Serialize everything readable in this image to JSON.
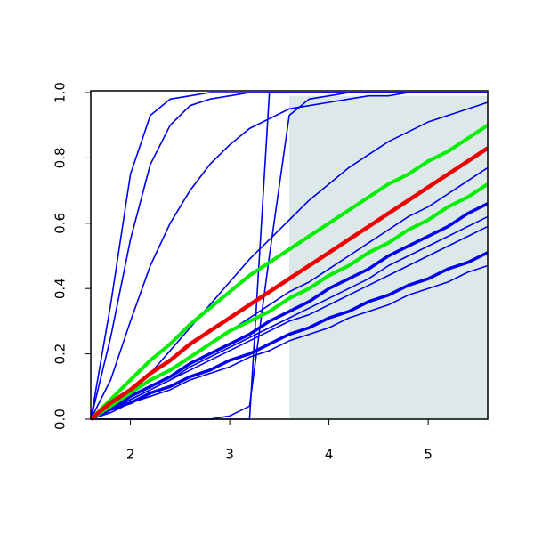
{
  "chart_data": {
    "type": "line",
    "x": [
      1.6,
      1.8,
      2.0,
      2.2,
      2.4,
      2.6,
      2.8,
      3.0,
      3.2,
      3.4,
      3.6,
      3.8,
      4.0,
      4.2,
      4.4,
      4.6,
      4.8,
      5.0,
      5.2,
      5.4,
      5.6
    ],
    "xlim": [
      1.6,
      5.6
    ],
    "xticks": [
      2,
      3,
      4,
      5
    ],
    "ylim": [
      0,
      1
    ],
    "yticks": [
      {
        "value": 0,
        "label": "0.0"
      },
      0.2,
      0.4,
      0.6,
      0.8,
      {
        "value": 1,
        "label": "1.0"
      }
    ],
    "shade": {
      "xlim": [
        3.6,
        5.6
      ],
      "ylim": [
        0,
        0.99
      ],
      "color": "#dde9e9"
    },
    "series": [
      {
        "color": "#0000ee",
        "width": 1.6,
        "values": [
          0,
          0.35,
          0.75,
          0.93,
          0.98,
          0.99,
          1,
          1,
          1,
          1,
          1,
          1,
          1,
          1,
          1,
          1,
          1,
          1,
          1,
          1,
          1
        ]
      },
      {
        "color": "#0000ee",
        "width": 1.6,
        "values": [
          0,
          0.25,
          0.55,
          0.78,
          0.9,
          0.96,
          0.98,
          0.99,
          1,
          1,
          1,
          1,
          1,
          1,
          1,
          1,
          1,
          1,
          1,
          1,
          1
        ]
      },
      {
        "color": "#0000ee",
        "width": 1.6,
        "values": [
          0,
          0.12,
          0.3,
          0.47,
          0.6,
          0.7,
          0.78,
          0.84,
          0.89,
          0.92,
          0.95,
          0.96,
          0.97,
          0.98,
          0.99,
          0.99,
          1,
          1,
          1,
          1,
          1
        ]
      },
      {
        "color": "#0000ee",
        "width": 1.6,
        "values": [
          0,
          0,
          0,
          0,
          0,
          0,
          0,
          0,
          0,
          1,
          1,
          1,
          1,
          1,
          1,
          1,
          1,
          1,
          1,
          1,
          1
        ]
      },
      {
        "color": "#0000ee",
        "width": 1.6,
        "values": [
          0,
          0,
          0,
          0,
          0,
          0,
          0,
          0.01,
          0.04,
          0.5,
          0.93,
          0.98,
          0.99,
          1,
          1,
          1,
          1,
          1,
          1,
          1,
          1
        ]
      },
      {
        "color": "#0000ee",
        "width": 1.6,
        "values": [
          0,
          0.03,
          0.08,
          0.14,
          0.21,
          0.28,
          0.35,
          0.42,
          0.49,
          0.55,
          0.61,
          0.67,
          0.72,
          0.77,
          0.81,
          0.85,
          0.88,
          0.91,
          0.93,
          0.95,
          0.97
        ]
      },
      {
        "color": "#0000ee",
        "width": 1.6,
        "values": [
          0,
          0.04,
          0.08,
          0.12,
          0.15,
          0.19,
          0.23,
          0.27,
          0.31,
          0.35,
          0.39,
          0.42,
          0.46,
          0.5,
          0.54,
          0.58,
          0.62,
          0.65,
          0.69,
          0.73,
          0.77
        ]
      },
      {
        "color": "#0000ee",
        "width": 3.5,
        "values": [
          0,
          0.03,
          0.07,
          0.1,
          0.13,
          0.17,
          0.2,
          0.23,
          0.26,
          0.3,
          0.33,
          0.36,
          0.4,
          0.43,
          0.46,
          0.5,
          0.53,
          0.56,
          0.59,
          0.63,
          0.66
        ]
      },
      {
        "color": "#0000ee",
        "width": 1.6,
        "values": [
          0,
          0.03,
          0.06,
          0.09,
          0.12,
          0.16,
          0.19,
          0.22,
          0.25,
          0.28,
          0.31,
          0.34,
          0.37,
          0.4,
          0.43,
          0.47,
          0.5,
          0.53,
          0.56,
          0.59,
          0.62
        ]
      },
      {
        "color": "#0000ee",
        "width": 1.6,
        "values": [
          0,
          0.03,
          0.06,
          0.09,
          0.12,
          0.15,
          0.18,
          0.21,
          0.24,
          0.27,
          0.3,
          0.32,
          0.35,
          0.38,
          0.41,
          0.44,
          0.47,
          0.5,
          0.53,
          0.56,
          0.59
        ]
      },
      {
        "color": "#0000ee",
        "width": 3.5,
        "values": [
          0,
          0.03,
          0.05,
          0.08,
          0.1,
          0.13,
          0.15,
          0.18,
          0.2,
          0.23,
          0.26,
          0.28,
          0.31,
          0.33,
          0.36,
          0.38,
          0.41,
          0.43,
          0.46,
          0.48,
          0.51
        ]
      },
      {
        "color": "#0000ee",
        "width": 1.6,
        "values": [
          0,
          0.02,
          0.05,
          0.07,
          0.09,
          0.12,
          0.14,
          0.16,
          0.19,
          0.21,
          0.24,
          0.26,
          0.28,
          0.31,
          0.33,
          0.35,
          0.38,
          0.4,
          0.42,
          0.45,
          0.47
        ]
      },
      {
        "color": "#00ee00",
        "width": 4,
        "values": [
          0,
          0.06,
          0.12,
          0.18,
          0.23,
          0.29,
          0.34,
          0.39,
          0.44,
          0.48,
          0.52,
          0.56,
          0.6,
          0.64,
          0.68,
          0.72,
          0.75,
          0.79,
          0.82,
          0.86,
          0.9
        ]
      },
      {
        "color": "#00ee00",
        "width": 4,
        "values": [
          0,
          0.04,
          0.08,
          0.12,
          0.15,
          0.19,
          0.23,
          0.27,
          0.3,
          0.33,
          0.37,
          0.4,
          0.44,
          0.47,
          0.51,
          0.54,
          0.58,
          0.61,
          0.65,
          0.68,
          0.72
        ]
      },
      {
        "color": "#ee0000",
        "width": 4.5,
        "values": [
          0,
          0.05,
          0.09,
          0.14,
          0.18,
          0.23,
          0.27,
          0.31,
          0.35,
          0.39,
          0.43,
          0.47,
          0.51,
          0.55,
          0.59,
          0.63,
          0.67,
          0.71,
          0.75,
          0.79,
          0.83
        ]
      }
    ]
  }
}
